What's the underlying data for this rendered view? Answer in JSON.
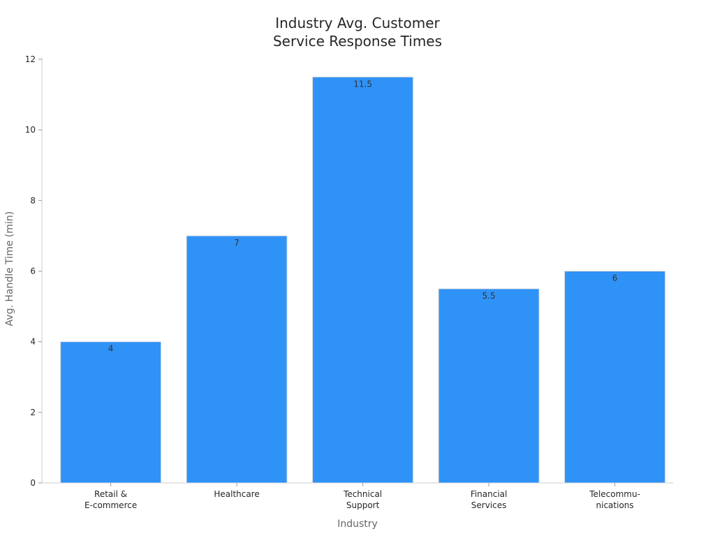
{
  "chart_data": {
    "type": "bar",
    "title_lines": [
      "Industry Avg. Customer",
      "Service Response Times"
    ],
    "xlabel": "Industry",
    "ylabel": "Avg. Handle Time (min)",
    "categories": [
      [
        "Retail &",
        "E-commerce"
      ],
      [
        "Healthcare"
      ],
      [
        "Technical",
        "Support"
      ],
      [
        "Financial",
        "Services"
      ],
      [
        "Telecommu-",
        "nications"
      ]
    ],
    "values": [
      4,
      7,
      11.5,
      5.5,
      6
    ],
    "value_labels": [
      "4",
      "7",
      "11.5",
      "5.5",
      "6"
    ],
    "ylim": [
      0,
      12
    ],
    "yticks": [
      0,
      2,
      4,
      6,
      8,
      10,
      12
    ],
    "ytick_labels": [
      "0",
      "2",
      "4",
      "6",
      "8",
      "10",
      "12"
    ],
    "bar_color": "#2f92f7",
    "grid": false,
    "legend": "none"
  }
}
